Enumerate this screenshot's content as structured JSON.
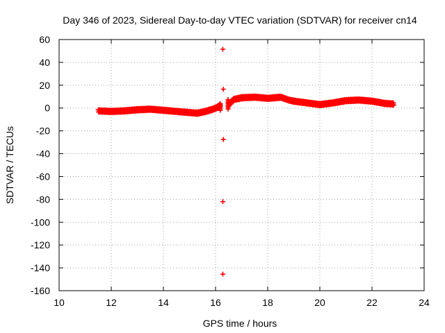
{
  "chart_data": {
    "type": "scatter",
    "title": "Day 346 of 2023, Sidereal Day-to-day VTEC variation (SDTVAR) for receiver cn14",
    "xlabel": "GPS time / hours",
    "ylabel": "SDTVAR / TECUs",
    "xlim": [
      10,
      24
    ],
    "ylim": [
      -160,
      60
    ],
    "x_ticks": [
      10,
      12,
      14,
      16,
      18,
      20,
      22,
      24
    ],
    "y_ticks": [
      60,
      40,
      20,
      0,
      -20,
      -40,
      -60,
      -80,
      -100,
      -120,
      -140,
      -160
    ],
    "grid": true,
    "marker": "plus",
    "series": [
      {
        "name": "SDTVAR",
        "color": "#ff0000",
        "trend": [
          [
            11.5,
            -2.5
          ],
          [
            12.0,
            -3.0
          ],
          [
            12.5,
            -2.5
          ],
          [
            13.0,
            -1.5
          ],
          [
            13.5,
            -1.0
          ],
          [
            14.0,
            -2.0
          ],
          [
            14.5,
            -3.0
          ],
          [
            15.0,
            -4.0
          ],
          [
            15.3,
            -4.5
          ],
          [
            15.6,
            -3.0
          ],
          [
            15.9,
            -1.0
          ],
          [
            16.1,
            1.0
          ],
          [
            16.2,
            3.0
          ],
          [
            16.5,
            3.0
          ],
          [
            16.7,
            7.5
          ],
          [
            17.0,
            9.0
          ],
          [
            17.5,
            9.5
          ],
          [
            18.0,
            8.5
          ],
          [
            18.5,
            9.5
          ],
          [
            18.8,
            7.0
          ],
          [
            19.0,
            6.0
          ],
          [
            19.5,
            4.5
          ],
          [
            20.0,
            3.0
          ],
          [
            20.5,
            4.5
          ],
          [
            21.0,
            6.5
          ],
          [
            21.5,
            7.0
          ],
          [
            22.0,
            6.0
          ],
          [
            22.5,
            4.0
          ],
          [
            22.85,
            3.5
          ]
        ],
        "outliers": [
          [
            16.28,
            51.5
          ],
          [
            16.3,
            16.5
          ],
          [
            16.3,
            -27.5
          ],
          [
            16.28,
            -82.0
          ],
          [
            16.28,
            -145.5
          ]
        ]
      }
    ]
  }
}
